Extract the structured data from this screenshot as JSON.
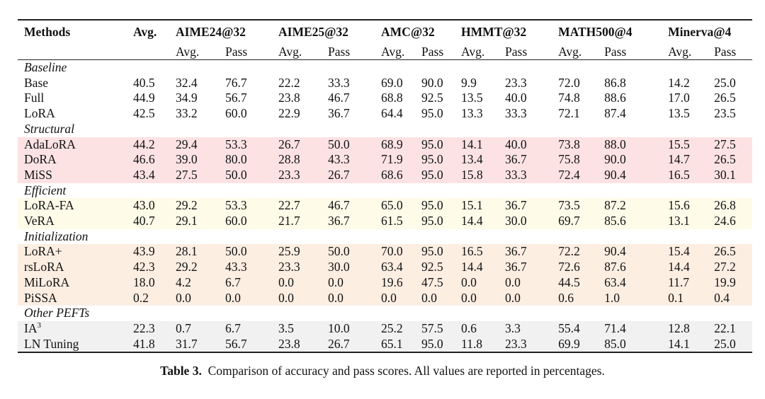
{
  "table": {
    "methods_header": "Methods",
    "avg_header": "Avg.",
    "groups": [
      "AIME24@32",
      "AIME25@32",
      "AMC@32",
      "HMMT@32",
      "MATH500@4",
      "Minerva@4"
    ],
    "sub_headers": [
      "Avg.",
      "Pass"
    ],
    "sections": [
      {
        "name": "Baseline",
        "style": "baseline",
        "rows": [
          {
            "method": "Base",
            "values": [
              "40.5",
              "32.4",
              "76.7",
              "22.2",
              "33.3",
              "69.0",
              "90.0",
              "9.9",
              "23.3",
              "72.0",
              "86.8",
              "14.2",
              "25.0"
            ]
          },
          {
            "method": "Full",
            "values": [
              "44.9",
              "34.9",
              "56.7",
              "23.8",
              "46.7",
              "68.8",
              "92.5",
              "13.5",
              "40.0",
              "74.8",
              "88.6",
              "17.0",
              "26.5"
            ]
          },
          {
            "method": "LoRA",
            "values": [
              "42.5",
              "33.2",
              "60.0",
              "22.9",
              "36.7",
              "64.4",
              "95.0",
              "13.3",
              "33.3",
              "72.1",
              "87.4",
              "13.5",
              "23.5"
            ]
          }
        ]
      },
      {
        "name": "Structural",
        "style": "structural",
        "rows": [
          {
            "method": "AdaLoRA",
            "values": [
              "44.2",
              "29.4",
              "53.3",
              "26.7",
              "50.0",
              "68.9",
              "95.0",
              "14.1",
              "40.0",
              "73.8",
              "88.0",
              "15.5",
              "27.5"
            ]
          },
          {
            "method": "DoRA",
            "values": [
              "46.6",
              "39.0",
              "80.0",
              "28.8",
              "43.3",
              "71.9",
              "95.0",
              "13.4",
              "36.7",
              "75.8",
              "90.0",
              "14.7",
              "26.5"
            ]
          },
          {
            "method": "MiSS",
            "values": [
              "43.4",
              "27.5",
              "50.0",
              "23.3",
              "26.7",
              "68.6",
              "95.0",
              "15.8",
              "33.3",
              "72.4",
              "90.4",
              "16.5",
              "30.1"
            ]
          }
        ]
      },
      {
        "name": "Efficient",
        "style": "efficient",
        "rows": [
          {
            "method": "LoRA-FA",
            "values": [
              "43.0",
              "29.2",
              "53.3",
              "22.7",
              "46.7",
              "65.0",
              "95.0",
              "15.1",
              "36.7",
              "73.5",
              "87.2",
              "15.6",
              "26.8"
            ]
          },
          {
            "method": "VeRA",
            "values": [
              "40.7",
              "29.1",
              "60.0",
              "21.7",
              "36.7",
              "61.5",
              "95.0",
              "14.4",
              "30.0",
              "69.7",
              "85.6",
              "13.1",
              "24.6"
            ]
          }
        ]
      },
      {
        "name": "Initialization",
        "style": "initialization",
        "rows": [
          {
            "method": "LoRA+",
            "values": [
              "43.9",
              "28.1",
              "50.0",
              "25.9",
              "50.0",
              "70.0",
              "95.0",
              "16.5",
              "36.7",
              "72.2",
              "90.4",
              "15.4",
              "26.5"
            ]
          },
          {
            "method": "rsLoRA",
            "values": [
              "42.3",
              "29.2",
              "43.3",
              "23.3",
              "30.0",
              "63.4",
              "92.5",
              "14.4",
              "36.7",
              "72.6",
              "87.6",
              "14.4",
              "27.2"
            ]
          },
          {
            "method": "MiLoRA",
            "values": [
              "18.0",
              "4.2",
              "6.7",
              "0.0",
              "0.0",
              "19.6",
              "47.5",
              "0.0",
              "0.0",
              "44.5",
              "63.4",
              "11.7",
              "19.9"
            ]
          },
          {
            "method": "PiSSA",
            "values": [
              "0.2",
              "0.0",
              "0.0",
              "0.0",
              "0.0",
              "0.0",
              "0.0",
              "0.0",
              "0.0",
              "0.6",
              "1.0",
              "0.1",
              "0.4"
            ]
          }
        ]
      },
      {
        "name": "Other PEFTs",
        "style": "other",
        "rows": [
          {
            "method": "IA",
            "method_sup": "3",
            "values": [
              "22.3",
              "0.7",
              "6.7",
              "3.5",
              "10.0",
              "25.2",
              "57.5",
              "0.6",
              "3.3",
              "55.4",
              "71.4",
              "12.8",
              "22.1"
            ]
          },
          {
            "method": "LN Tuning",
            "values": [
              "41.8",
              "31.7",
              "56.7",
              "23.8",
              "26.7",
              "65.1",
              "95.0",
              "11.8",
              "23.3",
              "69.9",
              "85.0",
              "14.1",
              "25.0"
            ]
          }
        ]
      }
    ]
  },
  "caption": {
    "label": "Table 3.",
    "text": "Comparison of accuracy and pass scores. All values are reported in percentages."
  },
  "colors": {
    "structural": "#fde2e4",
    "efficient": "#fefbe8",
    "initialization": "#fdeee2",
    "other": "#f1f1f1"
  }
}
